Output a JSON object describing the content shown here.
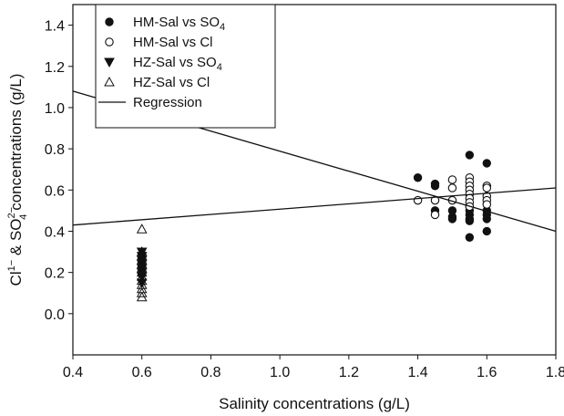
{
  "chart_data": {
    "type": "scatter",
    "xlabel": "Salinity concentrations (g/L)",
    "ylabel_parts": {
      "a": "Cl",
      "a_sup": "1−",
      "b": " & SO",
      "b_sup": "2−",
      "b_sub": "4",
      "c": "concentrations (g/L)"
    },
    "xlim": [
      0.4,
      1.8
    ],
    "ylim": [
      -0.2,
      1.5
    ],
    "xticks": [
      "0.4",
      "0.6",
      "0.8",
      "1.0",
      "1.2",
      "1.4",
      "1.6",
      "1.8"
    ],
    "yticks": [
      "0.0",
      "0.2",
      "0.4",
      "0.6",
      "0.8",
      "1.0",
      "1.2",
      "1.4"
    ],
    "xtick_values": [
      0.4,
      0.6,
      0.8,
      1.0,
      1.2,
      1.4,
      1.6,
      1.8
    ],
    "ytick_values": [
      0.0,
      0.2,
      0.4,
      0.6,
      0.8,
      1.0,
      1.2,
      1.4
    ],
    "grid": false,
    "legend_position": "top-left",
    "series": [
      {
        "name": "HM-Sal vs SO4",
        "legend_main": "HM-Sal vs SO",
        "legend_sub": "4",
        "marker": "filled-circle",
        "points": [
          [
            1.4,
            0.66
          ],
          [
            1.45,
            0.63
          ],
          [
            1.45,
            0.62
          ],
          [
            1.45,
            0.5
          ],
          [
            1.5,
            0.5
          ],
          [
            1.5,
            0.47
          ],
          [
            1.5,
            0.46
          ],
          [
            1.55,
            0.77
          ],
          [
            1.55,
            0.52
          ],
          [
            1.55,
            0.5
          ],
          [
            1.55,
            0.48
          ],
          [
            1.55,
            0.46
          ],
          [
            1.55,
            0.45
          ],
          [
            1.55,
            0.37
          ],
          [
            1.6,
            0.73
          ],
          [
            1.6,
            0.5
          ],
          [
            1.6,
            0.48
          ],
          [
            1.6,
            0.46
          ],
          [
            1.6,
            0.4
          ]
        ]
      },
      {
        "name": "HM-Sal vs Cl",
        "legend_main": "HM-Sal vs Cl",
        "legend_sub": "",
        "marker": "open-circle",
        "points": [
          [
            1.4,
            0.55
          ],
          [
            1.45,
            0.55
          ],
          [
            1.45,
            0.48
          ],
          [
            1.5,
            0.65
          ],
          [
            1.5,
            0.61
          ],
          [
            1.5,
            0.55
          ],
          [
            1.55,
            0.66
          ],
          [
            1.55,
            0.64
          ],
          [
            1.55,
            0.62
          ],
          [
            1.55,
            0.6
          ],
          [
            1.55,
            0.58
          ],
          [
            1.55,
            0.56
          ],
          [
            1.55,
            0.54
          ],
          [
            1.55,
            0.52
          ],
          [
            1.6,
            0.62
          ],
          [
            1.6,
            0.61
          ],
          [
            1.6,
            0.57
          ],
          [
            1.6,
            0.55
          ],
          [
            1.6,
            0.53
          ]
        ]
      },
      {
        "name": "HZ-Sal vs SO4",
        "legend_main": "HZ-Sal vs SO",
        "legend_sub": "4",
        "marker": "filled-triangle-down",
        "points": [
          [
            0.6,
            0.3
          ],
          [
            0.6,
            0.28
          ],
          [
            0.6,
            0.26
          ],
          [
            0.6,
            0.24
          ],
          [
            0.6,
            0.22
          ],
          [
            0.6,
            0.2
          ],
          [
            0.6,
            0.18
          ],
          [
            0.6,
            0.15
          ]
        ]
      },
      {
        "name": "HZ-Sal vs Cl",
        "legend_main": "HZ-Sal vs Cl",
        "legend_sub": "",
        "marker": "open-triangle-up",
        "points": [
          [
            0.6,
            0.41
          ],
          [
            0.6,
            0.3
          ],
          [
            0.6,
            0.28
          ],
          [
            0.6,
            0.26
          ],
          [
            0.6,
            0.24
          ],
          [
            0.6,
            0.22
          ],
          [
            0.6,
            0.2
          ],
          [
            0.6,
            0.18
          ],
          [
            0.6,
            0.16
          ],
          [
            0.6,
            0.14
          ],
          [
            0.6,
            0.12
          ],
          [
            0.6,
            0.1
          ],
          [
            0.6,
            0.08
          ]
        ]
      },
      {
        "name": "Regression",
        "legend_main": "Regression",
        "legend_sub": "",
        "marker": "line",
        "lines": [
          {
            "x": [
              0.4,
              1.8
            ],
            "y": [
              1.08,
              0.4
            ]
          },
          {
            "x": [
              0.4,
              1.8
            ],
            "y": [
              0.43,
              0.61
            ]
          }
        ]
      }
    ]
  }
}
